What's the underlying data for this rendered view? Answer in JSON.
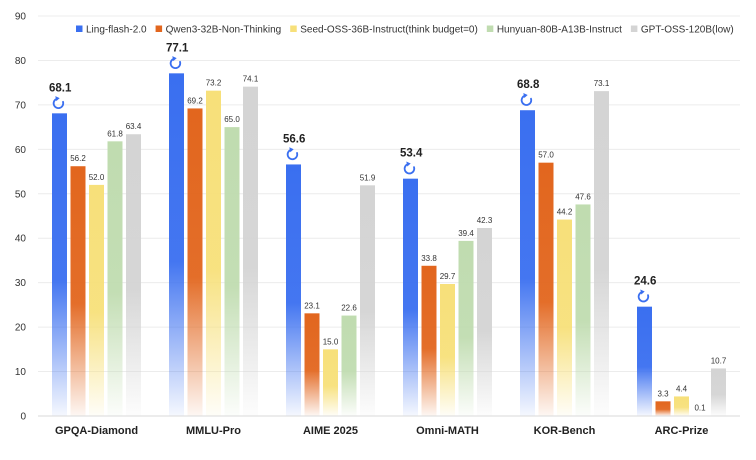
{
  "chart_data": {
    "type": "bar",
    "categories": [
      "GPQA-Diamond",
      "MMLU-Pro",
      "AIME 2025",
      "Omni-MATH",
      "KOR-Bench",
      "ARC-Prize"
    ],
    "series": [
      {
        "name": "Ling-flash-2.0",
        "values": [
          68.1,
          77.1,
          56.6,
          53.4,
          68.8,
          24.6
        ],
        "color": "#3a6ff0",
        "highlight": true
      },
      {
        "name": "Qwen3-32B-Non-Thinking",
        "values": [
          56.2,
          69.2,
          23.1,
          33.8,
          57.0,
          3.3
        ],
        "color": "#e2661e"
      },
      {
        "name": "Seed-OSS-36B-Instruct(think budget=0)",
        "values": [
          52.0,
          73.2,
          15.0,
          29.7,
          44.2,
          4.4
        ],
        "color": "#f7e07a"
      },
      {
        "name": "Hunyuan-80B-A13B-Instruct",
        "values": [
          61.8,
          65.0,
          22.6,
          39.4,
          47.6,
          0.1
        ],
        "color": "#c0dcb0"
      },
      {
        "name": "GPT-OSS-120B(low)",
        "values": [
          63.4,
          74.1,
          51.9,
          42.3,
          73.1,
          10.7
        ],
        "color": "#d4d4d4"
      }
    ],
    "value_labels": [
      [
        "68.1",
        "77.1",
        "56.6",
        "53.4",
        "68.8",
        "24.6"
      ],
      [
        "56.2",
        "69.2",
        "23.1",
        "33.8",
        "57.0",
        "3.3"
      ],
      [
        "52.0",
        "73.2",
        "15.0",
        "29.7",
        "44.2",
        "4.4"
      ],
      [
        "61.8",
        "65.0",
        "22.6",
        "39.4",
        "47.6",
        "0.1"
      ],
      [
        "63.4",
        "74.1",
        "51.9",
        "42.3",
        "73.1",
        "10.7"
      ]
    ],
    "title": "",
    "xlabel": "",
    "ylabel": "",
    "ylim": [
      0,
      90
    ],
    "yticks": [
      "0",
      "10",
      "20",
      "30",
      "40",
      "50",
      "60",
      "70",
      "80",
      "90"
    ],
    "grid": true,
    "legend_position": "top",
    "highlight_icon": "ling-logo-icon"
  }
}
